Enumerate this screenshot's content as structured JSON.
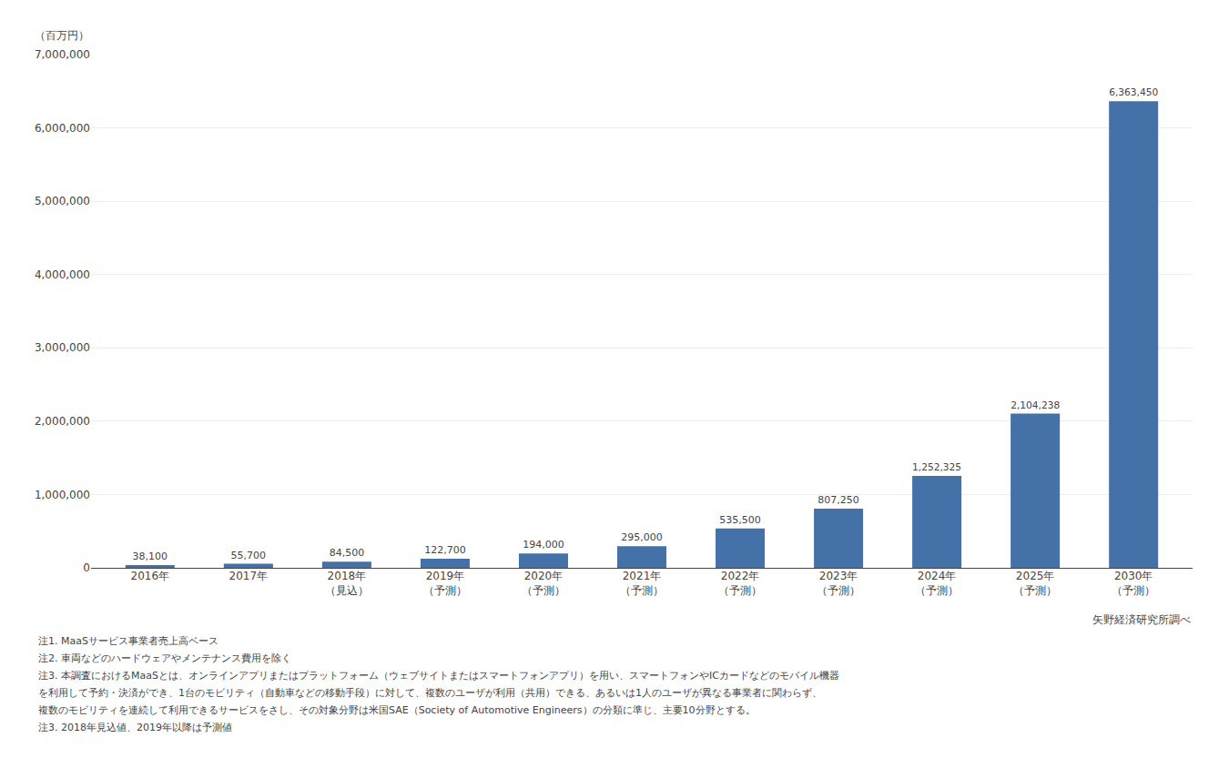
{
  "chart_data": {
    "type": "bar",
    "ylabel": "（百万円）",
    "categories": [
      "2016年",
      "2017年",
      "2018年\n（見込）",
      "2019年\n（予測）",
      "2020年\n（予測）",
      "2021年\n（予測）",
      "2022年\n（予測）",
      "2023年\n（予測）",
      "2024年\n（予測）",
      "2025年\n（予測）",
      "2030年\n（予測）"
    ],
    "values": [
      38100,
      55700,
      84500,
      122700,
      194000,
      295000,
      535500,
      807250,
      1252325,
      2104238,
      6363450
    ],
    "value_labels": [
      "38,100",
      "55,700",
      "84,500",
      "122,700",
      "194,000",
      "295,000",
      "535,500",
      "807,250",
      "1,252,325",
      "2,104,238",
      "6,363,450"
    ],
    "color": "#4472a8",
    "ylim": [
      0,
      7000000
    ],
    "yticks": [
      0,
      {
        "value": 1000000,
        "label": "1,000,000"
      },
      {
        "value": 2000000,
        "label": "2,000,000"
      },
      {
        "value": 3000000,
        "label": "3,000,000"
      },
      {
        "value": 4000000,
        "label": "4,000,000"
      },
      {
        "value": 5000000,
        "label": "5,000,000"
      },
      {
        "value": 6000000,
        "label": "6,000,000"
      },
      {
        "value": 7000000,
        "label": "7,000,000"
      }
    ],
    "grid": true,
    "data_labels": true,
    "source": "矢野経済研究所調べ",
    "notes": [
      "注1. MaaSサービス事業者売上高ベース",
      "注2. 車両などのハードウェアやメンテナンス費用を除く",
      "注3. 本調査におけるMaaSとは、オンラインアプリまたはプラットフォーム（ウェブサイトまたはスマートフォンアプリ）を用い、スマートフォンやICカードなどのモバイル機器",
      "を利用して予約・決済ができ、1台のモビリティ（自動車などの移動手段）に対して、複数のユーザが利用（共用）できる、あるいは1人のユーザが異なる事業者に関わらず、",
      "複数のモビリティを連続して利用できるサービスをさし、その対象分野は米国SAE（Society of Automotive Engineers）の分類に準じ、主要10分野とする。",
      "注3. 2018年見込値、2019年以降は予測値"
    ]
  }
}
